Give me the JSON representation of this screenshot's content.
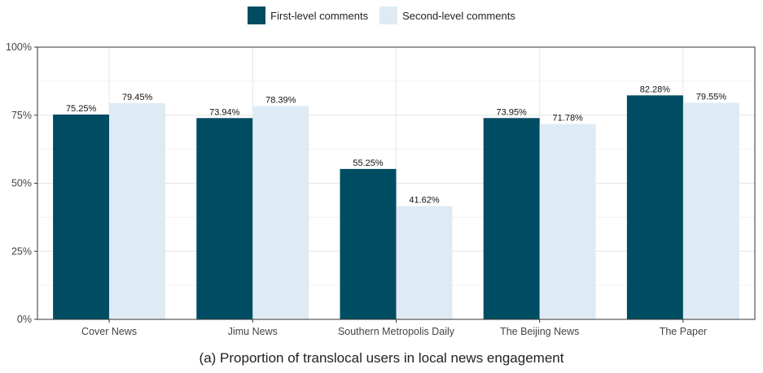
{
  "legend": {
    "first_label": "First-level comments",
    "second_label": "Second-level comments"
  },
  "colors": {
    "first": "#004c63",
    "second": "#deebf4",
    "grid": "#e6e6e6",
    "axis": "#333333"
  },
  "caption": "(a) Proportion of translocal users in local news engagement",
  "chart_data": {
    "type": "bar",
    "categories": [
      "Cover News",
      "Jimu News",
      "Southern Metropolis Daily",
      "The Beijing News",
      "The Paper"
    ],
    "series": [
      {
        "name": "First-level comments",
        "values": [
          75.25,
          73.94,
          55.25,
          73.95,
          82.28
        ],
        "labels": [
          "75.25%",
          "73.94%",
          "55.25%",
          "73.95%",
          "82.28%"
        ]
      },
      {
        "name": "Second-level comments",
        "values": [
          79.45,
          78.39,
          41.62,
          71.78,
          79.55
        ],
        "labels": [
          "79.45%",
          "78.39%",
          "41.62%",
          "71.78%",
          "79.55%"
        ]
      }
    ],
    "ylim": [
      0,
      100
    ],
    "yticks": [
      0,
      25,
      50,
      75,
      100
    ],
    "ytick_labels": [
      "0%",
      "25%",
      "50%",
      "75%",
      "100%"
    ],
    "grid": true,
    "legend_position": "top"
  }
}
